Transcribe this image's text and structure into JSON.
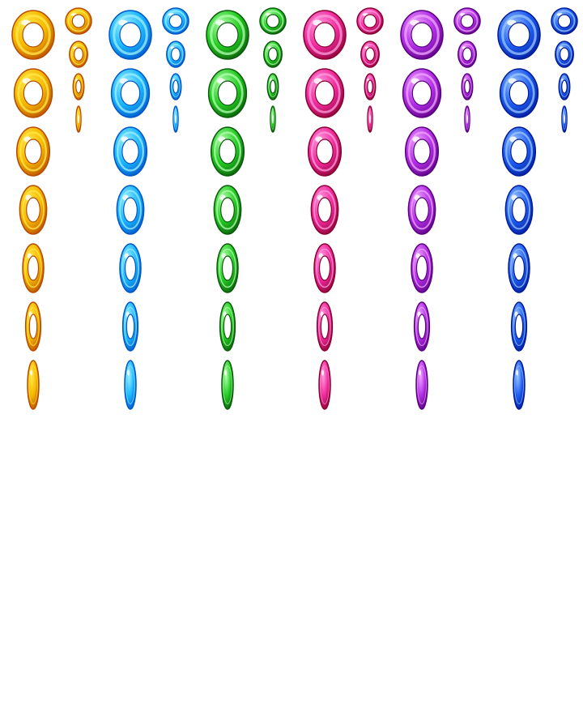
{
  "sprite_sheet": {
    "background": "#ffffff",
    "sets": [
      {
        "name": "gold",
        "colors": {
          "light": "#ffe94a",
          "mid": "#f5b800",
          "dark": "#b84a00",
          "highlight": "#ffffff"
        }
      },
      {
        "name": "cyan",
        "colors": {
          "light": "#9ff0ff",
          "mid": "#19b6ff",
          "dark": "#0055c8",
          "highlight": "#ffffff"
        }
      },
      {
        "name": "green",
        "colors": {
          "light": "#b6ffb0",
          "mid": "#22cc22",
          "dark": "#0a5a0a",
          "highlight": "#ffffff"
        }
      },
      {
        "name": "pink",
        "colors": {
          "light": "#ff9de0",
          "mid": "#f02a9c",
          "dark": "#8a0030",
          "highlight": "#ffffff"
        }
      },
      {
        "name": "purple",
        "colors": {
          "light": "#f2a8ff",
          "mid": "#b22ee6",
          "dark": "#5a0080",
          "highlight": "#ffffff"
        }
      },
      {
        "name": "blue",
        "colors": {
          "light": "#9cc8ff",
          "mid": "#1e5cf0",
          "dark": "#001a9a",
          "highlight": "#ffffff"
        }
      }
    ],
    "large_frames": 7,
    "small_frames": 4,
    "large_frame_widths": [
      1.0,
      0.9,
      0.78,
      0.64,
      0.5,
      0.36,
      0.22
    ],
    "small_frame_widths": [
      1.0,
      0.7,
      0.42,
      0.18
    ]
  }
}
